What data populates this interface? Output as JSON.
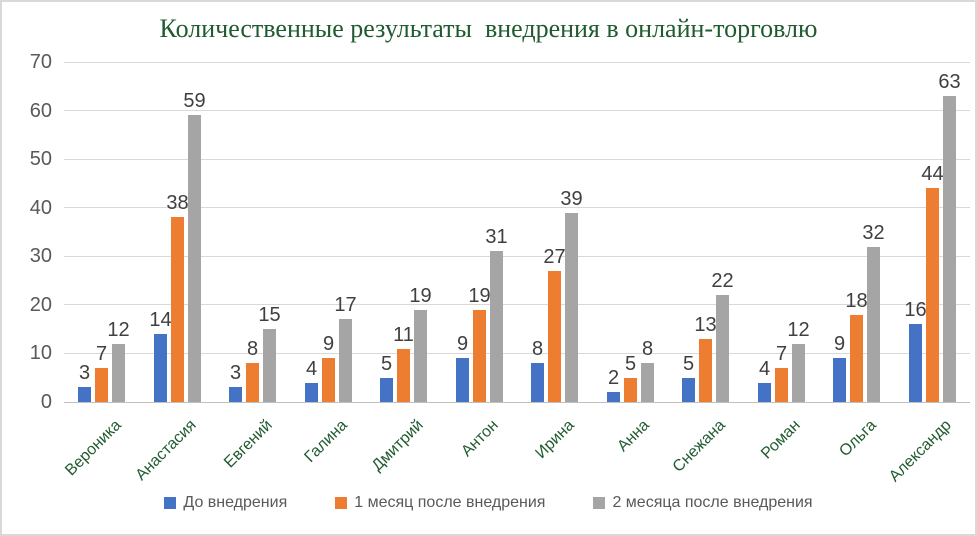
{
  "chart_data": {
    "type": "bar",
    "title": "Количественные результаты  внедрения в онлайн-торговлю",
    "categories": [
      "Вероника",
      "Анастасия",
      "Евгений",
      "Галина",
      "Дмитрий",
      "Антон",
      "Ирина",
      "Анна",
      "Снежана",
      "Роман",
      "Ольга",
      "Александр"
    ],
    "series": [
      {
        "name": "До внедрения",
        "color": "#4472c4",
        "values": [
          3,
          14,
          3,
          4,
          5,
          9,
          8,
          2,
          5,
          4,
          9,
          16
        ]
      },
      {
        "name": "1 месяц после внедрения",
        "color": "#ed7d31",
        "values": [
          7,
          38,
          8,
          9,
          11,
          19,
          27,
          5,
          13,
          7,
          18,
          44
        ]
      },
      {
        "name": "2 месяца после внедрения",
        "color": "#a5a5a5",
        "values": [
          12,
          59,
          15,
          17,
          19,
          31,
          39,
          8,
          22,
          12,
          32,
          63
        ]
      }
    ],
    "xlabel": "",
    "ylabel": "",
    "ylim": [
      0,
      70
    ],
    "yticks": [
      0,
      10,
      20,
      30,
      40,
      50,
      60,
      70
    ],
    "grid": true,
    "data_labels": true,
    "legend_position": "bottom"
  },
  "style": {
    "title_color": "#1f5b2f",
    "category_label_color": "#1f5b2f",
    "axis_tick_color": "#595959",
    "data_label_color": "#404040",
    "gridline_color": "#d9d9d9",
    "axis_line_color": "#c0c0c0",
    "border_color": "#d9d9d9",
    "background_color": "#ffffff"
  }
}
